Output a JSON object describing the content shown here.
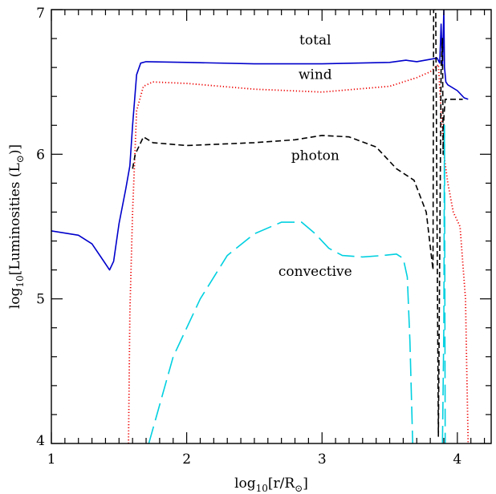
{
  "chart_data": {
    "type": "line",
    "xlabel": {
      "base": "log",
      "sub": "10",
      "body": "[r/R",
      "sun": "⊙",
      "close": "]"
    },
    "ylabel": {
      "base": "log",
      "sub": "10",
      "body": "[Luminosities (L",
      "sun": "⊙",
      "close": ")]"
    },
    "xlim": [
      1.0,
      4.25
    ],
    "ylim": [
      4.0,
      7.0
    ],
    "xticks_major": [
      1,
      2,
      3,
      4
    ],
    "yticks_major": [
      4,
      5,
      6,
      7
    ],
    "xtick_labels": [
      "1",
      "2",
      "3",
      "4"
    ],
    "ytick_labels": [
      "4",
      "5",
      "6",
      "7"
    ],
    "grid": false,
    "legend": "none",
    "annotations": [
      {
        "text": "total",
        "x": 2.95,
        "y": 6.76
      },
      {
        "text": "wind",
        "x": 2.95,
        "y": 6.52
      },
      {
        "text": "photon",
        "x": 2.95,
        "y": 5.96
      },
      {
        "text": "convective",
        "x": 2.95,
        "y": 5.16
      }
    ],
    "series": [
      {
        "key": "total",
        "color": "#0000cc",
        "style": "solid",
        "points": [
          [
            1.0,
            5.47
          ],
          [
            1.2,
            5.44
          ],
          [
            1.3,
            5.38
          ],
          [
            1.38,
            5.27
          ],
          [
            1.43,
            5.2
          ],
          [
            1.46,
            5.26
          ],
          [
            1.5,
            5.52
          ],
          [
            1.55,
            5.76
          ],
          [
            1.58,
            5.92
          ],
          [
            1.6,
            6.2
          ],
          [
            1.63,
            6.55
          ],
          [
            1.66,
            6.63
          ],
          [
            1.7,
            6.64
          ],
          [
            2.0,
            6.635
          ],
          [
            2.5,
            6.625
          ],
          [
            3.0,
            6.625
          ],
          [
            3.5,
            6.635
          ],
          [
            3.62,
            6.65
          ],
          [
            3.7,
            6.64
          ],
          [
            3.85,
            6.665
          ],
          [
            3.87,
            6.63
          ],
          [
            3.88,
            6.9
          ],
          [
            3.89,
            6.6
          ],
          [
            3.9,
            7.0
          ],
          [
            3.905,
            6.6
          ],
          [
            3.91,
            6.55
          ],
          [
            3.915,
            6.5
          ],
          [
            3.93,
            6.48
          ],
          [
            4.0,
            6.44
          ],
          [
            4.05,
            6.39
          ],
          [
            4.08,
            6.38
          ]
        ]
      },
      {
        "key": "wind",
        "color": "#ee0000",
        "style": "dotted",
        "points": [
          [
            1.57,
            4.0
          ],
          [
            1.58,
            4.9
          ],
          [
            1.6,
            5.6
          ],
          [
            1.63,
            6.3
          ],
          [
            1.68,
            6.47
          ],
          [
            1.75,
            6.5
          ],
          [
            2.0,
            6.49
          ],
          [
            2.5,
            6.45
          ],
          [
            3.0,
            6.43
          ],
          [
            3.5,
            6.47
          ],
          [
            3.7,
            6.53
          ],
          [
            3.8,
            6.57
          ],
          [
            3.86,
            6.62
          ],
          [
            3.88,
            6.3
          ],
          [
            3.9,
            6.0
          ],
          [
            3.93,
            5.8
          ],
          [
            3.97,
            5.6
          ],
          [
            4.02,
            5.5
          ],
          [
            4.06,
            5.0
          ],
          [
            4.07,
            4.5
          ],
          [
            4.08,
            4.0
          ]
        ]
      },
      {
        "key": "photon",
        "color": "#000000",
        "style": "dashed",
        "points": [
          [
            1.6,
            5.9
          ],
          [
            1.62,
            6.0
          ],
          [
            1.68,
            6.12
          ],
          [
            1.75,
            6.08
          ],
          [
            2.0,
            6.06
          ],
          [
            2.5,
            6.08
          ],
          [
            2.8,
            6.1
          ],
          [
            3.0,
            6.13
          ],
          [
            3.2,
            6.12
          ],
          [
            3.4,
            6.05
          ],
          [
            3.55,
            5.9
          ],
          [
            3.68,
            5.82
          ],
          [
            3.77,
            5.6
          ],
          [
            3.82,
            5.2
          ],
          [
            3.825,
            7.0
          ],
          [
            3.84,
            7.0
          ],
          [
            3.86,
            4.05
          ],
          [
            3.88,
            6.6
          ],
          [
            3.89,
            6.8
          ],
          [
            3.895,
            6.0
          ],
          [
            3.9,
            6.25
          ],
          [
            3.91,
            6.38
          ],
          [
            4.02,
            6.38
          ],
          [
            4.04,
            6.38
          ]
        ]
      },
      {
        "key": "convective",
        "color": "#00d0e0",
        "style": "longdash",
        "points": [
          [
            1.72,
            4.0
          ],
          [
            1.9,
            4.6
          ],
          [
            2.1,
            5.0
          ],
          [
            2.3,
            5.3
          ],
          [
            2.5,
            5.45
          ],
          [
            2.7,
            5.53
          ],
          [
            2.85,
            5.53
          ],
          [
            2.95,
            5.45
          ],
          [
            3.05,
            5.35
          ],
          [
            3.15,
            5.3
          ],
          [
            3.3,
            5.29
          ],
          [
            3.45,
            5.3
          ],
          [
            3.55,
            5.31
          ],
          [
            3.6,
            5.28
          ],
          [
            3.63,
            5.15
          ],
          [
            3.65,
            4.7
          ],
          [
            3.67,
            4.0
          ]
        ]
      },
      {
        "key": "convective-spike",
        "color": "#00d0e0",
        "style": "longdash",
        "points": [
          [
            3.89,
            4.0
          ],
          [
            3.9,
            4.8
          ],
          [
            3.905,
            6.2
          ],
          [
            3.91,
            4.0
          ]
        ]
      }
    ]
  }
}
